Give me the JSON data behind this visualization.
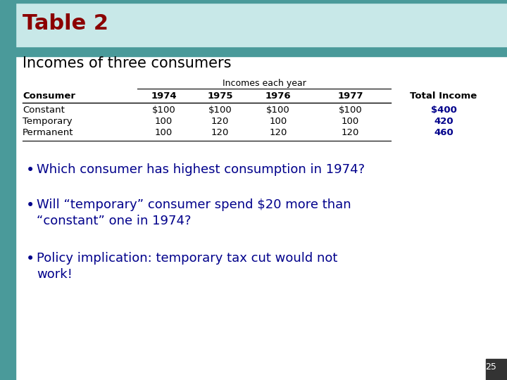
{
  "title": "Table 2",
  "subtitle": "Incomes of three consumers",
  "title_color": "#8B0000",
  "subtitle_color": "#000000",
  "table_header_group": "Incomes each year",
  "col_headers": [
    "Consumer",
    "1974",
    "1975",
    "1976",
    "1977",
    "Total Income"
  ],
  "rows": [
    [
      "Constant",
      "$100",
      "$100",
      "$100",
      "$100",
      "$400"
    ],
    [
      "Temporary",
      "100",
      "120",
      "100",
      "100",
      "420"
    ],
    [
      "Permanent",
      "100",
      "120",
      "120",
      "120",
      "460"
    ]
  ],
  "total_income_color": "#00008B",
  "bullet_points": [
    "Which consumer has highest consumption in 1974?",
    "Will “temporary” consumer spend $20 more than\n“constant” one in 1974?",
    "Policy implication: temporary tax cut would not\nwork!"
  ],
  "bullet_color": "#00008B",
  "bg_color": "#FFFFFF",
  "teal_bar_color": "#4A9A9A",
  "page_number": "25",
  "col_alignments": [
    "left",
    "center",
    "center",
    "center",
    "center",
    "center"
  ]
}
